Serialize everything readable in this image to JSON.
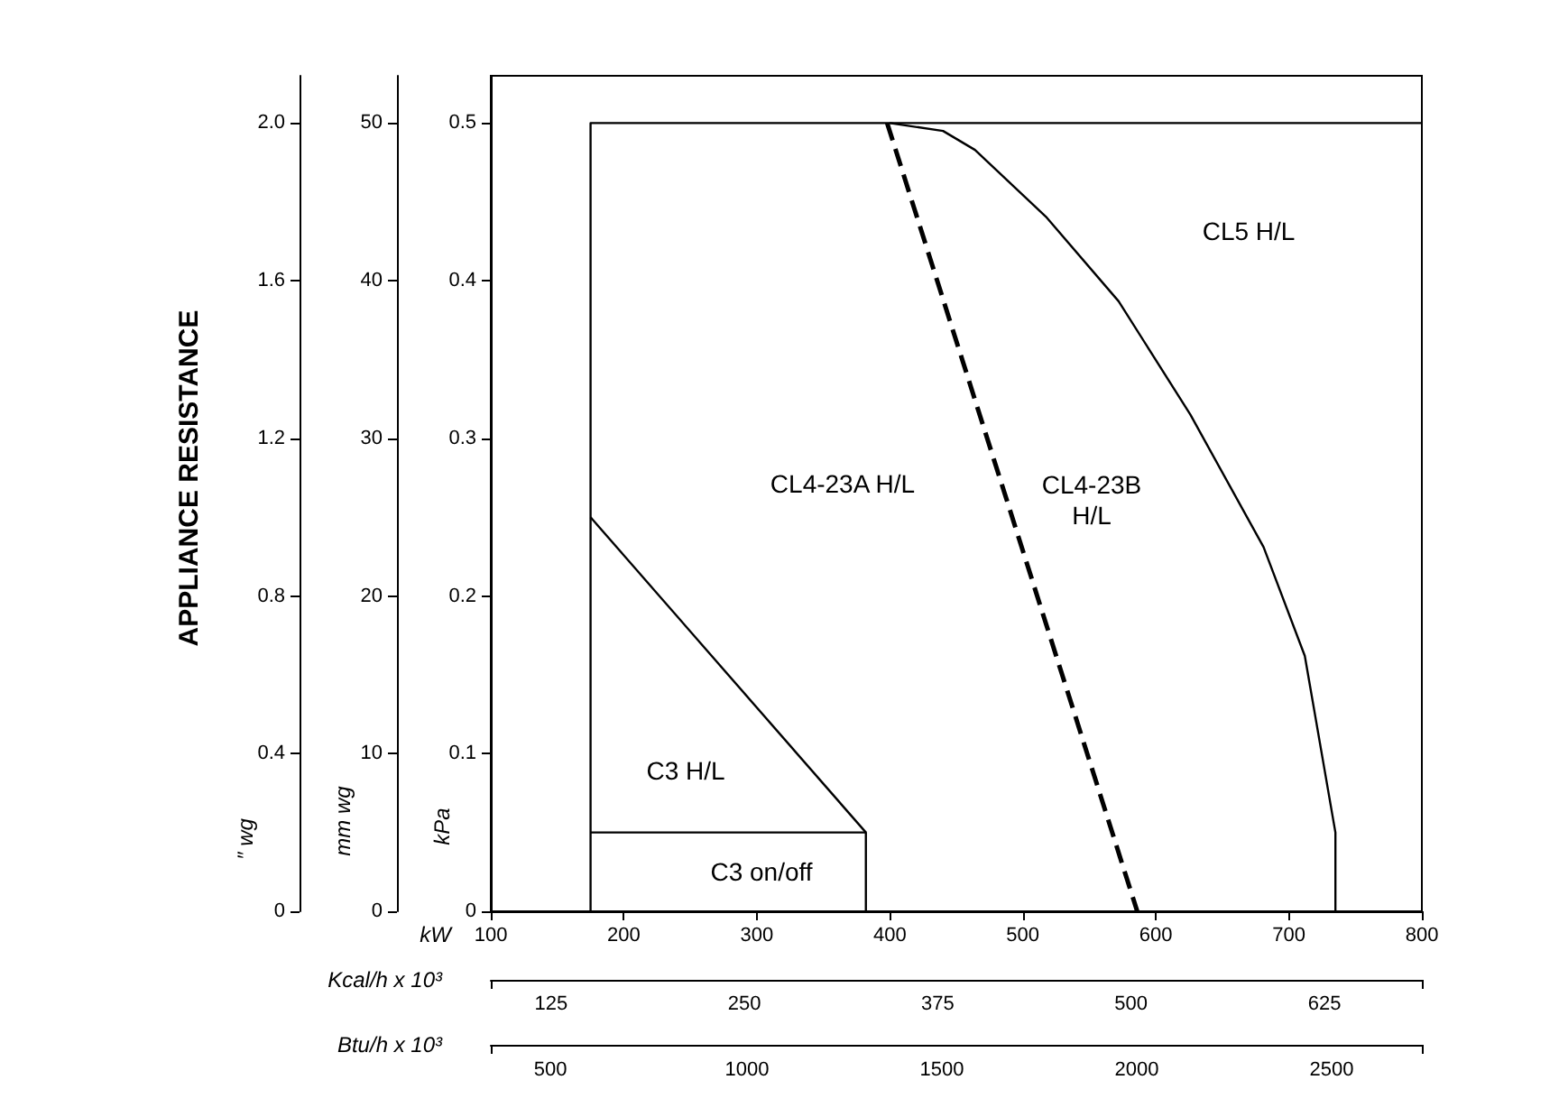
{
  "chart_data": {
    "type": "line",
    "xlabel": "kW",
    "ylabel": "kPa",
    "y2label": "mm wg",
    "x2label": "Kcal/h x 10³",
    "xlim": [
      100,
      800
    ],
    "xticks": [
      100,
      200,
      300,
      400,
      500,
      600,
      700,
      800
    ],
    "ylim": [
      0,
      0.53
    ],
    "yticks": [
      0,
      0.1,
      0.2,
      0.3,
      0.4,
      0.5
    ],
    "y2lim": [
      0,
      53
    ],
    "y2ticks": [
      0,
      10,
      20,
      30,
      40,
      50
    ],
    "x2lim": [
      86,
      688
    ],
    "x2ticks": [
      125,
      250,
      375,
      500,
      625
    ],
    "grid": false,
    "marker": "none",
    "series": [
      {
        "color": "#000000",
        "x": [
          175,
          175,
          800
        ],
        "values": [
          0,
          0.5,
          0.5
        ]
      },
      {
        "color": "#000000",
        "x": [
          175,
          382,
          382
        ],
        "values": [
          0.05,
          0.05,
          0
        ]
      },
      {
        "color": "#000000",
        "x": [
          175,
          382
        ],
        "values": [
          0.25,
          0.05
        ]
      },
      {
        "color": "#000000",
        "line_style": "dashed",
        "x": [
          398,
          586
        ],
        "values": [
          0.5,
          0
        ]
      },
      {
        "color": "#000000",
        "x": [
          400,
          440,
          464,
          518,
          572,
          626,
          681,
          712,
          735,
          735
        ],
        "values": [
          0.5,
          0.495,
          0.483,
          0.44,
          0.387,
          0.315,
          0.231,
          0.162,
          0.05,
          0
        ]
      }
    ],
    "annotations": [
      "APPLIANCE RESISTANCE",
      "C3 on/off",
      "C3 H/L",
      "CL4-23A H/L",
      "CL4-23B\nH/L",
      "CL5 H/L",
      "″ wg",
      "0",
      "0.4",
      "0.8",
      "1.2",
      "1.6",
      "2.0",
      "Btu/h x 10³",
      "500",
      "1000",
      "1500",
      "2000",
      "2500"
    ]
  }
}
